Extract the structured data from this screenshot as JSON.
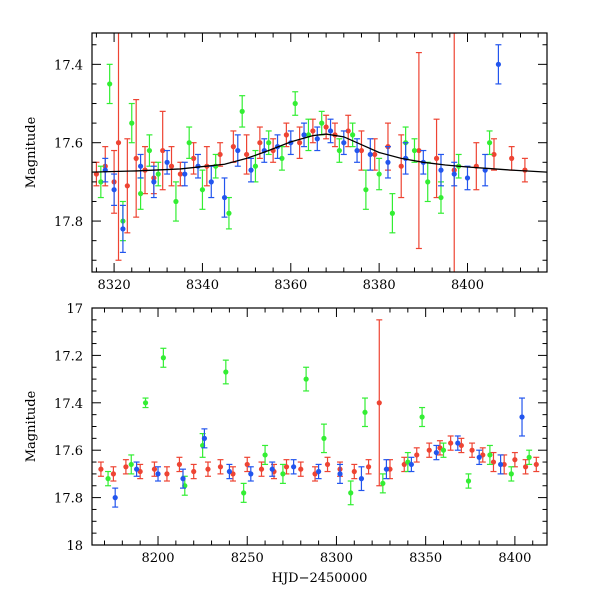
{
  "chart_data": [
    {
      "type": "scatter",
      "panel": "top",
      "title": "",
      "xlabel": "",
      "ylabel": "Magnitude",
      "xlim": [
        8315,
        8418
      ],
      "ylim": [
        17.93,
        17.32
      ],
      "y_inverted": true,
      "grid": false,
      "xticks": [
        8320,
        8340,
        8360,
        8380,
        8400
      ],
      "xtick_labels": [
        "8320",
        "8340",
        "8360",
        "8380",
        "8400"
      ],
      "yticks": [
        17.4,
        17.6,
        17.8
      ],
      "ytick_labels": [
        "17.4",
        "17.6",
        "17.8"
      ],
      "model_line": {
        "color": "#000000",
        "x": [
          8315,
          8325,
          8335,
          8345,
          8350,
          8355,
          8360,
          8365,
          8368,
          8372,
          8376,
          8380,
          8385,
          8390,
          8395,
          8400,
          8405,
          8410,
          8418
        ],
        "y": [
          17.675,
          17.672,
          17.667,
          17.655,
          17.64,
          17.62,
          17.598,
          17.582,
          17.578,
          17.585,
          17.605,
          17.625,
          17.64,
          17.65,
          17.657,
          17.662,
          17.666,
          17.67,
          17.675
        ]
      },
      "series": [
        {
          "color": "#ee4433",
          "x": [
            8316,
            8318,
            8320,
            8321,
            8323,
            8325,
            8327,
            8329,
            8331,
            8333,
            8335,
            8338,
            8341,
            8344,
            8347,
            8350,
            8353,
            8356,
            8359,
            8362,
            8365,
            8368,
            8370,
            8373,
            8376,
            8379,
            8382,
            8385,
            8389,
            8393,
            8397,
            8402,
            8406,
            8410,
            8413
          ],
          "y": [
            17.68,
            17.66,
            17.7,
            17.6,
            17.71,
            17.64,
            17.67,
            17.69,
            17.62,
            17.66,
            17.68,
            17.64,
            17.66,
            17.63,
            17.61,
            17.63,
            17.6,
            17.62,
            17.58,
            17.6,
            17.57,
            17.56,
            17.58,
            17.57,
            17.62,
            17.63,
            17.61,
            17.66,
            17.62,
            17.64,
            17.67,
            17.66,
            17.63,
            17.64,
            17.67
          ],
          "err": [
            0.03,
            0.05,
            0.08,
            0.3,
            0.12,
            0.15,
            0.06,
            0.04,
            0.1,
            0.05,
            0.03,
            0.04,
            0.05,
            0.03,
            0.04,
            0.05,
            0.04,
            0.03,
            0.03,
            0.04,
            0.03,
            0.03,
            0.03,
            0.04,
            0.05,
            0.04,
            0.06,
            0.08,
            0.25,
            0.1,
            0.35,
            0.06,
            0.04,
            0.03,
            0.03
          ]
        },
        {
          "color": "#33ee33",
          "x": [
            8317,
            8319,
            8322,
            8324,
            8326,
            8328,
            8330,
            8334,
            8337,
            8340,
            8343,
            8346,
            8349,
            8352,
            8355,
            8358,
            8361,
            8364,
            8367,
            8371,
            8374,
            8377,
            8380,
            8383,
            8386,
            8388,
            8391,
            8394,
            8398,
            8405
          ],
          "y": [
            17.7,
            17.45,
            17.8,
            17.55,
            17.73,
            17.62,
            17.68,
            17.75,
            17.6,
            17.72,
            17.66,
            17.78,
            17.52,
            17.66,
            17.6,
            17.64,
            17.5,
            17.58,
            17.55,
            17.62,
            17.58,
            17.72,
            17.68,
            17.78,
            17.6,
            17.62,
            17.7,
            17.74,
            17.66,
            17.6
          ],
          "err": [
            0.04,
            0.05,
            0.05,
            0.05,
            0.04,
            0.04,
            0.03,
            0.05,
            0.04,
            0.05,
            0.03,
            0.04,
            0.04,
            0.04,
            0.03,
            0.03,
            0.03,
            0.04,
            0.03,
            0.03,
            0.03,
            0.05,
            0.04,
            0.05,
            0.04,
            0.03,
            0.05,
            0.04,
            0.03,
            0.03
          ]
        },
        {
          "color": "#2255ee",
          "x": [
            8318,
            8320,
            8322,
            8326,
            8329,
            8332,
            8336,
            8339,
            8342,
            8345,
            8348,
            8351,
            8354,
            8357,
            8360,
            8363,
            8366,
            8369,
            8372,
            8375,
            8378,
            8382,
            8386,
            8390,
            8394,
            8397,
            8400,
            8404,
            8407
          ],
          "y": [
            17.67,
            17.72,
            17.82,
            17.66,
            17.7,
            17.65,
            17.68,
            17.66,
            17.7,
            17.74,
            17.62,
            17.67,
            17.62,
            17.61,
            17.6,
            17.58,
            17.59,
            17.57,
            17.6,
            17.62,
            17.63,
            17.65,
            17.64,
            17.65,
            17.67,
            17.68,
            17.69,
            17.67,
            17.4
          ],
          "err": [
            0.03,
            0.04,
            0.06,
            0.03,
            0.04,
            0.03,
            0.03,
            0.03,
            0.04,
            0.05,
            0.04,
            0.03,
            0.03,
            0.03,
            0.03,
            0.03,
            0.03,
            0.03,
            0.03,
            0.03,
            0.04,
            0.04,
            0.04,
            0.03,
            0.04,
            0.03,
            0.03,
            0.04,
            0.05
          ]
        }
      ]
    },
    {
      "type": "scatter",
      "panel": "bottom",
      "title": "",
      "xlabel": "HJD−2450000",
      "ylabel": "Magnitude",
      "xlim": [
        8163,
        8418
      ],
      "ylim": [
        18.0,
        17.0
      ],
      "y_inverted": true,
      "grid": false,
      "xticks": [
        8200,
        8250,
        8300,
        8350,
        8400
      ],
      "xtick_labels": [
        "8200",
        "8250",
        "8300",
        "8350",
        "8400"
      ],
      "yticks": [
        17.0,
        17.2,
        17.4,
        17.6,
        17.8,
        18.0
      ],
      "ytick_labels": [
        "17",
        "17.2",
        "17.4",
        "17.6",
        "17.8",
        "18"
      ],
      "series": [
        {
          "color": "#ee4433",
          "x": [
            8168,
            8175,
            8182,
            8190,
            8198,
            8205,
            8212,
            8220,
            8228,
            8235,
            8242,
            8250,
            8258,
            8265,
            8272,
            8280,
            8288,
            8295,
            8302,
            8310,
            8318,
            8324,
            8330,
            8338,
            8345,
            8352,
            8358,
            8364,
            8370,
            8376,
            8382,
            8388,
            8394,
            8400,
            8406,
            8412
          ],
          "y": [
            17.68,
            17.7,
            17.67,
            17.69,
            17.68,
            17.7,
            17.66,
            17.69,
            17.68,
            17.67,
            17.7,
            17.66,
            17.68,
            17.69,
            17.67,
            17.68,
            17.7,
            17.66,
            17.68,
            17.69,
            17.67,
            17.4,
            17.68,
            17.66,
            17.62,
            17.6,
            17.59,
            17.57,
            17.58,
            17.6,
            17.62,
            17.65,
            17.66,
            17.64,
            17.67,
            17.66
          ],
          "err": [
            0.03,
            0.03,
            0.03,
            0.03,
            0.03,
            0.03,
            0.03,
            0.03,
            0.03,
            0.03,
            0.03,
            0.03,
            0.03,
            0.03,
            0.03,
            0.03,
            0.03,
            0.03,
            0.03,
            0.03,
            0.03,
            0.35,
            0.04,
            0.03,
            0.03,
            0.03,
            0.03,
            0.03,
            0.03,
            0.03,
            0.03,
            0.04,
            0.04,
            0.03,
            0.03,
            0.03
          ]
        },
        {
          "color": "#33ee33",
          "x": [
            8172,
            8185,
            8193,
            8203,
            8215,
            8225,
            8238,
            8248,
            8260,
            8270,
            8283,
            8293,
            8308,
            8316,
            8326,
            8340,
            8348,
            8360,
            8374,
            8386,
            8398,
            8408
          ],
          "y": [
            17.72,
            17.66,
            17.4,
            17.21,
            17.75,
            17.58,
            17.27,
            17.78,
            17.62,
            17.7,
            17.3,
            17.55,
            17.78,
            17.44,
            17.74,
            17.65,
            17.46,
            17.6,
            17.73,
            17.62,
            17.7,
            17.63
          ],
          "err": [
            0.03,
            0.04,
            0.02,
            0.04,
            0.04,
            0.05,
            0.05,
            0.04,
            0.04,
            0.04,
            0.05,
            0.06,
            0.05,
            0.06,
            0.04,
            0.04,
            0.04,
            0.03,
            0.03,
            0.04,
            0.03,
            0.03
          ]
        },
        {
          "color": "#2255ee",
          "x": [
            8176,
            8188,
            8200,
            8214,
            8226,
            8240,
            8252,
            8264,
            8276,
            8290,
            8302,
            8314,
            8328,
            8342,
            8356,
            8368,
            8380,
            8392,
            8404
          ],
          "y": [
            17.8,
            17.68,
            17.7,
            17.72,
            17.55,
            17.69,
            17.7,
            17.68,
            17.67,
            17.69,
            17.7,
            17.72,
            17.68,
            17.66,
            17.61,
            17.57,
            17.63,
            17.66,
            17.46
          ],
          "err": [
            0.04,
            0.03,
            0.03,
            0.04,
            0.04,
            0.03,
            0.03,
            0.03,
            0.03,
            0.03,
            0.04,
            0.05,
            0.04,
            0.03,
            0.03,
            0.03,
            0.03,
            0.04,
            0.08
          ]
        }
      ]
    }
  ]
}
